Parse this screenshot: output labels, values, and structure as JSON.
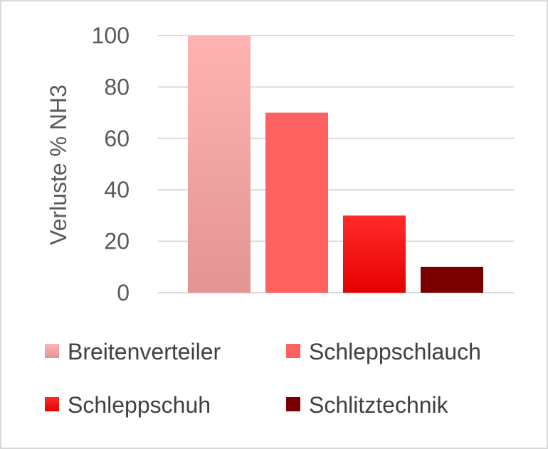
{
  "chart_data": {
    "type": "bar",
    "title": "",
    "xlabel": "",
    "ylabel": "Verluste % NH3",
    "ylim": [
      0,
      100
    ],
    "yticks": [
      0,
      20,
      40,
      60,
      80,
      100
    ],
    "grid": true,
    "legend_position": "bottom",
    "series": [
      {
        "name": "Breitenverteiler",
        "value": 100,
        "color": "#f4a6a6",
        "color_bottom": "#e39494"
      },
      {
        "name": "Schleppschlauch",
        "value": 70,
        "color": "#ff6161"
      },
      {
        "name": "Schleppschuh",
        "value": 30,
        "color": "#ff1a1a",
        "color_bottom": "#e60000"
      },
      {
        "name": "Schlitztechnik",
        "value": 10,
        "color": "#7a0000"
      }
    ]
  }
}
